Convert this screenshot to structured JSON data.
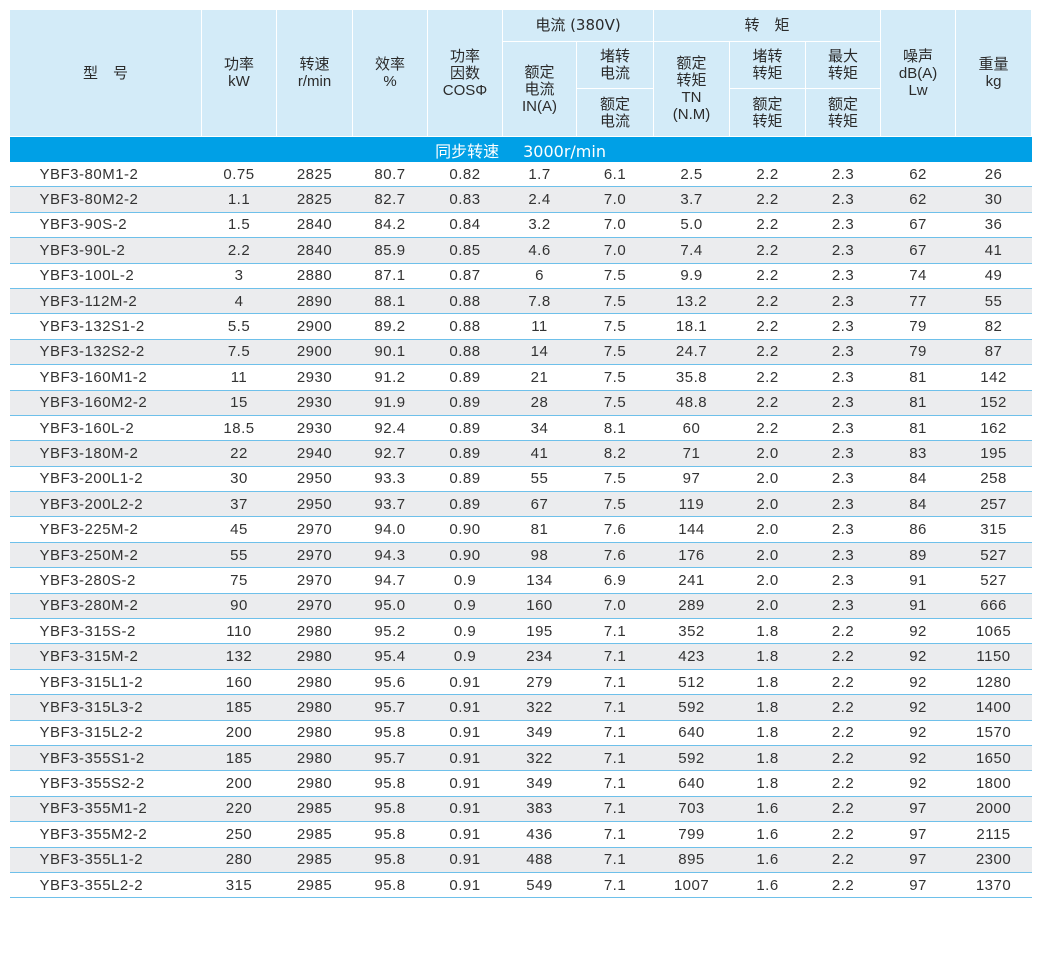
{
  "header": {
    "model": "型　号",
    "power": {
      "zh": "功率",
      "unit": "kW"
    },
    "speed": {
      "zh": "转速",
      "unit": "r/min"
    },
    "efficiency": {
      "zh": "效率",
      "unit": "%"
    },
    "power_factor": {
      "zh1": "功率",
      "zh2": "因数",
      "unit": "COSΦ"
    },
    "current_group": "电流 (380V)",
    "rated_current": {
      "zh1": "额定",
      "zh2": "电流",
      "unit": "IN(A)"
    },
    "locked_current": {
      "top": "堵转电流",
      "bottom": "额定电流"
    },
    "torque_group": "转　矩",
    "rated_torque": {
      "zh1": "额定",
      "zh2": "转矩",
      "unit1": "TN",
      "unit2": "(N.M)"
    },
    "locked_torque": {
      "top": "堵转转矩",
      "bottom": "额定转矩"
    },
    "max_torque": {
      "top": "最大转矩",
      "bottom": "额定转矩"
    },
    "noise": {
      "zh": "噪声",
      "unit1": "dB(A)",
      "unit2": "Lw"
    },
    "weight": {
      "zh": "重量",
      "unit": "kg"
    }
  },
  "section": {
    "label": "同步转速",
    "value": "3000r/min"
  },
  "columns": [
    "型号",
    "功率kW",
    "转速r/min",
    "效率%",
    "功率因数COSΦ",
    "额定电流IN(A)",
    "堵转电流/额定电流",
    "额定转矩TN(N.M)",
    "堵转转矩/额定转矩",
    "最大转矩/额定转矩",
    "噪声dB(A)Lw",
    "重量kg"
  ],
  "rows": [
    [
      "YBF3-80M1-2",
      "0.75",
      "2825",
      "80.7",
      "0.82",
      "1.7",
      "6.1",
      "2.5",
      "2.2",
      "2.3",
      "62",
      "26"
    ],
    [
      "YBF3-80M2-2",
      "1.1",
      "2825",
      "82.7",
      "0.83",
      "2.4",
      "7.0",
      "3.7",
      "2.2",
      "2.3",
      "62",
      "30"
    ],
    [
      "YBF3-90S-2",
      "1.5",
      "2840",
      "84.2",
      "0.84",
      "3.2",
      "7.0",
      "5.0",
      "2.2",
      "2.3",
      "67",
      "36"
    ],
    [
      "YBF3-90L-2",
      "2.2",
      "2840",
      "85.9",
      "0.85",
      "4.6",
      "7.0",
      "7.4",
      "2.2",
      "2.3",
      "67",
      "41"
    ],
    [
      "YBF3-100L-2",
      "3",
      "2880",
      "87.1",
      "0.87",
      "6",
      "7.5",
      "9.9",
      "2.2",
      "2.3",
      "74",
      "49"
    ],
    [
      "YBF3-112M-2",
      "4",
      "2890",
      "88.1",
      "0.88",
      "7.8",
      "7.5",
      "13.2",
      "2.2",
      "2.3",
      "77",
      "55"
    ],
    [
      "YBF3-132S1-2",
      "5.5",
      "2900",
      "89.2",
      "0.88",
      "11",
      "7.5",
      "18.1",
      "2.2",
      "2.3",
      "79",
      "82"
    ],
    [
      "YBF3-132S2-2",
      "7.5",
      "2900",
      "90.1",
      "0.88",
      "14",
      "7.5",
      "24.7",
      "2.2",
      "2.3",
      "79",
      "87"
    ],
    [
      "YBF3-160M1-2",
      "11",
      "2930",
      "91.2",
      "0.89",
      "21",
      "7.5",
      "35.8",
      "2.2",
      "2.3",
      "81",
      "142"
    ],
    [
      "YBF3-160M2-2",
      "15",
      "2930",
      "91.9",
      "0.89",
      "28",
      "7.5",
      "48.8",
      "2.2",
      "2.3",
      "81",
      "152"
    ],
    [
      "YBF3-160L-2",
      "18.5",
      "2930",
      "92.4",
      "0.89",
      "34",
      "8.1",
      "60",
      "2.2",
      "2.3",
      "81",
      "162"
    ],
    [
      "YBF3-180M-2",
      "22",
      "2940",
      "92.7",
      "0.89",
      "41",
      "8.2",
      "71",
      "2.0",
      "2.3",
      "83",
      "195"
    ],
    [
      "YBF3-200L1-2",
      "30",
      "2950",
      "93.3",
      "0.89",
      "55",
      "7.5",
      "97",
      "2.0",
      "2.3",
      "84",
      "258"
    ],
    [
      "YBF3-200L2-2",
      "37",
      "2950",
      "93.7",
      "0.89",
      "67",
      "7.5",
      "119",
      "2.0",
      "2.3",
      "84",
      "257"
    ],
    [
      "YBF3-225M-2",
      "45",
      "2970",
      "94.0",
      "0.90",
      "81",
      "7.6",
      "144",
      "2.0",
      "2.3",
      "86",
      "315"
    ],
    [
      "YBF3-250M-2",
      "55",
      "2970",
      "94.3",
      "0.90",
      "98",
      "7.6",
      "176",
      "2.0",
      "2.3",
      "89",
      "527"
    ],
    [
      "YBF3-280S-2",
      "75",
      "2970",
      "94.7",
      "0.9",
      "134",
      "6.9",
      "241",
      "2.0",
      "2.3",
      "91",
      "527"
    ],
    [
      "YBF3-280M-2",
      "90",
      "2970",
      "95.0",
      "0.9",
      "160",
      "7.0",
      "289",
      "2.0",
      "2.3",
      "91",
      "666"
    ],
    [
      "YBF3-315S-2",
      "110",
      "2980",
      "95.2",
      "0.9",
      "195",
      "7.1",
      "352",
      "1.8",
      "2.2",
      "92",
      "1065"
    ],
    [
      "YBF3-315M-2",
      "132",
      "2980",
      "95.4",
      "0.9",
      "234",
      "7.1",
      "423",
      "1.8",
      "2.2",
      "92",
      "1150"
    ],
    [
      "YBF3-315L1-2",
      "160",
      "2980",
      "95.6",
      "0.91",
      "279",
      "7.1",
      "512",
      "1.8",
      "2.2",
      "92",
      "1280"
    ],
    [
      "YBF3-315L3-2",
      "185",
      "2980",
      "95.7",
      "0.91",
      "322",
      "7.1",
      "592",
      "1.8",
      "2.2",
      "92",
      "1400"
    ],
    [
      "YBF3-315L2-2",
      "200",
      "2980",
      "95.8",
      "0.91",
      "349",
      "7.1",
      "640",
      "1.8",
      "2.2",
      "92",
      "1570"
    ],
    [
      "YBF3-355S1-2",
      "185",
      "2980",
      "95.7",
      "0.91",
      "322",
      "7.1",
      "592",
      "1.8",
      "2.2",
      "92",
      "1650"
    ],
    [
      "YBF3-355S2-2",
      "200",
      "2980",
      "95.8",
      "0.91",
      "349",
      "7.1",
      "640",
      "1.8",
      "2.2",
      "92",
      "1800"
    ],
    [
      "YBF3-355M1-2",
      "220",
      "2985",
      "95.8",
      "0.91",
      "383",
      "7.1",
      "703",
      "1.6",
      "2.2",
      "97",
      "2000"
    ],
    [
      "YBF3-355M2-2",
      "250",
      "2985",
      "95.8",
      "0.91",
      "436",
      "7.1",
      "799",
      "1.6",
      "2.2",
      "97",
      "2115"
    ],
    [
      "YBF3-355L1-2",
      "280",
      "2985",
      "95.8",
      "0.91",
      "488",
      "7.1",
      "895",
      "1.6",
      "2.2",
      "97",
      "2300"
    ],
    [
      "YBF3-355L2-2",
      "315",
      "2985",
      "95.8",
      "0.91",
      "549",
      "7.1",
      "1007",
      "1.6",
      "2.2",
      "97",
      "1370"
    ]
  ],
  "colors": {
    "header_bg": "#d3ebf8",
    "band_bg": "#00a0e6",
    "row_alt_bg": "#ebecee",
    "row_line": "#6ec0ea"
  }
}
